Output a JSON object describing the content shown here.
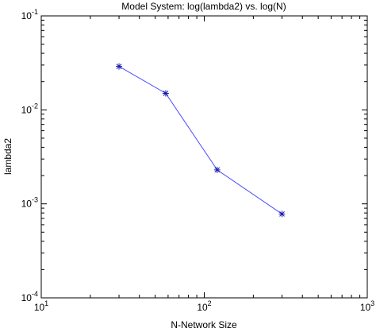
{
  "chart_data": {
    "type": "line",
    "title": "Model System: log(lambda2) vs. log(N)",
    "xlabel": "N-Network Size",
    "ylabel": "lambda2",
    "xscale": "log",
    "yscale": "log",
    "xlim": [
      10,
      1000
    ],
    "ylim": [
      0.0001,
      0.1
    ],
    "grid": false,
    "legend": "none",
    "x_ticks": [
      {
        "value": 10,
        "base": "10",
        "exp": "1"
      },
      {
        "value": 100,
        "base": "10",
        "exp": "2"
      },
      {
        "value": 1000,
        "base": "10",
        "exp": "3"
      }
    ],
    "y_ticks": [
      {
        "value": 0.0001,
        "base": "10",
        "exp": "-4"
      },
      {
        "value": 0.001,
        "base": "10",
        "exp": "-3"
      },
      {
        "value": 0.01,
        "base": "10",
        "exp": "-2"
      },
      {
        "value": 0.1,
        "base": "10",
        "exp": "-1"
      }
    ],
    "series": [
      {
        "color": "#4a4aff",
        "marker_color": "#1a1aaa",
        "marker": "star",
        "x": [
          30,
          58,
          120,
          300
        ],
        "y": [
          0.029,
          0.015,
          0.0023,
          0.00078
        ]
      }
    ]
  }
}
